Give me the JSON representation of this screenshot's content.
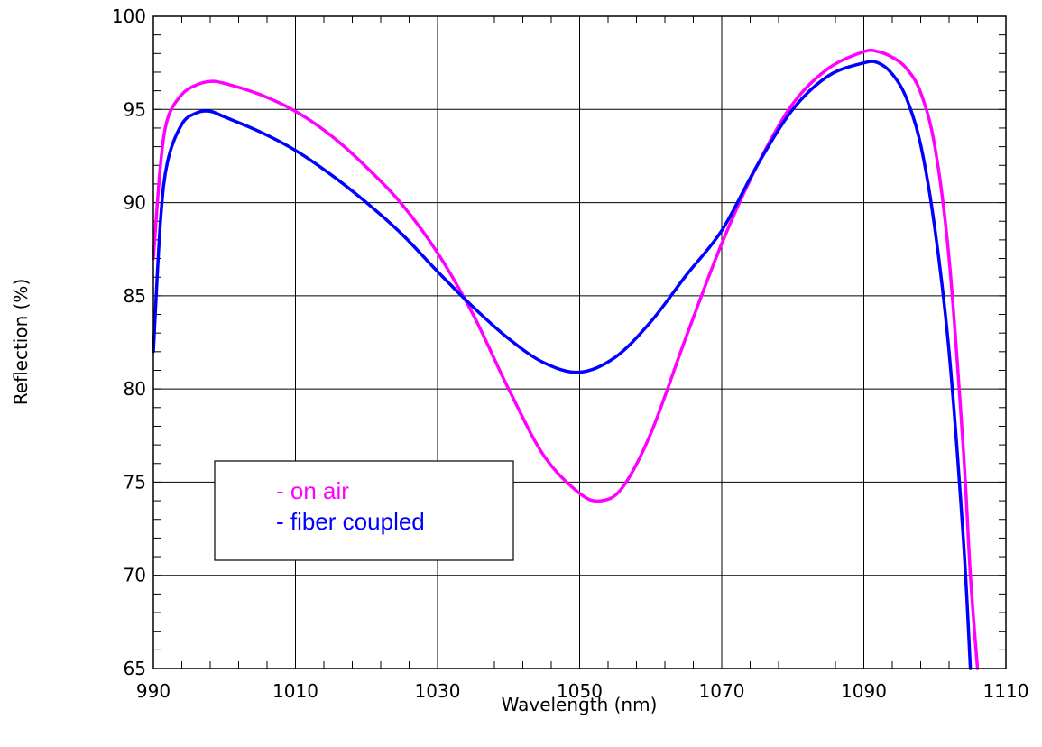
{
  "chart_data": {
    "type": "line",
    "xlabel": "Wavelength (nm)",
    "ylabel": "Reflection (%)",
    "xlim": [
      990,
      1110
    ],
    "ylim": [
      65,
      100
    ],
    "x_ticks": [
      990,
      1010,
      1030,
      1050,
      1070,
      1090,
      1110
    ],
    "y_ticks": [
      65,
      70,
      75,
      80,
      85,
      90,
      95,
      100
    ],
    "x_tick_labels": [
      "990",
      "1010",
      "1030",
      "1050",
      "1070",
      "1090",
      "1110"
    ],
    "y_tick_labels": [
      "65",
      "70",
      "75",
      "80",
      "85",
      "90",
      "95",
      "100"
    ],
    "grid": true,
    "legend_position": "lower-left",
    "series": [
      {
        "name": "- on air",
        "color": "#ff00ff",
        "x": [
          990,
          991,
          992,
          994,
          996,
          998,
          1000,
          1005,
          1010,
          1015,
          1020,
          1025,
          1030,
          1035,
          1040,
          1045,
          1050,
          1053,
          1056,
          1060,
          1065,
          1070,
          1075,
          1080,
          1085,
          1090,
          1092,
          1094,
          1096,
          1098,
          1100,
          1102,
          1104,
          1105,
          1106
        ],
        "y": [
          87.0,
          92.0,
          94.5,
          95.8,
          96.3,
          96.5,
          96.4,
          95.8,
          94.9,
          93.6,
          91.9,
          89.9,
          87.3,
          84.0,
          80.0,
          76.4,
          74.4,
          74.0,
          74.7,
          77.6,
          82.8,
          87.8,
          92.0,
          95.3,
          97.2,
          98.1,
          98.1,
          97.8,
          97.2,
          95.9,
          93.0,
          87.0,
          76.8,
          70.0,
          65.0
        ]
      },
      {
        "name": "- fiber coupled",
        "color": "#0000ff",
        "x": [
          990,
          991,
          992,
          994,
          996,
          998,
          1000,
          1005,
          1010,
          1015,
          1020,
          1025,
          1030,
          1035,
          1040,
          1045,
          1050,
          1055,
          1060,
          1065,
          1070,
          1075,
          1080,
          1085,
          1090,
          1092,
          1094,
          1096,
          1098,
          1100,
          1102,
          1104,
          1105
        ],
        "y": [
          82.0,
          89.0,
          92.2,
          94.2,
          94.8,
          94.9,
          94.6,
          93.8,
          92.8,
          91.5,
          90.0,
          88.3,
          86.3,
          84.4,
          82.7,
          81.4,
          80.9,
          81.7,
          83.6,
          86.1,
          88.5,
          92.0,
          95.0,
          96.8,
          97.5,
          97.5,
          96.9,
          95.6,
          93.1,
          88.6,
          82.0,
          72.0,
          65.0
        ]
      }
    ]
  }
}
